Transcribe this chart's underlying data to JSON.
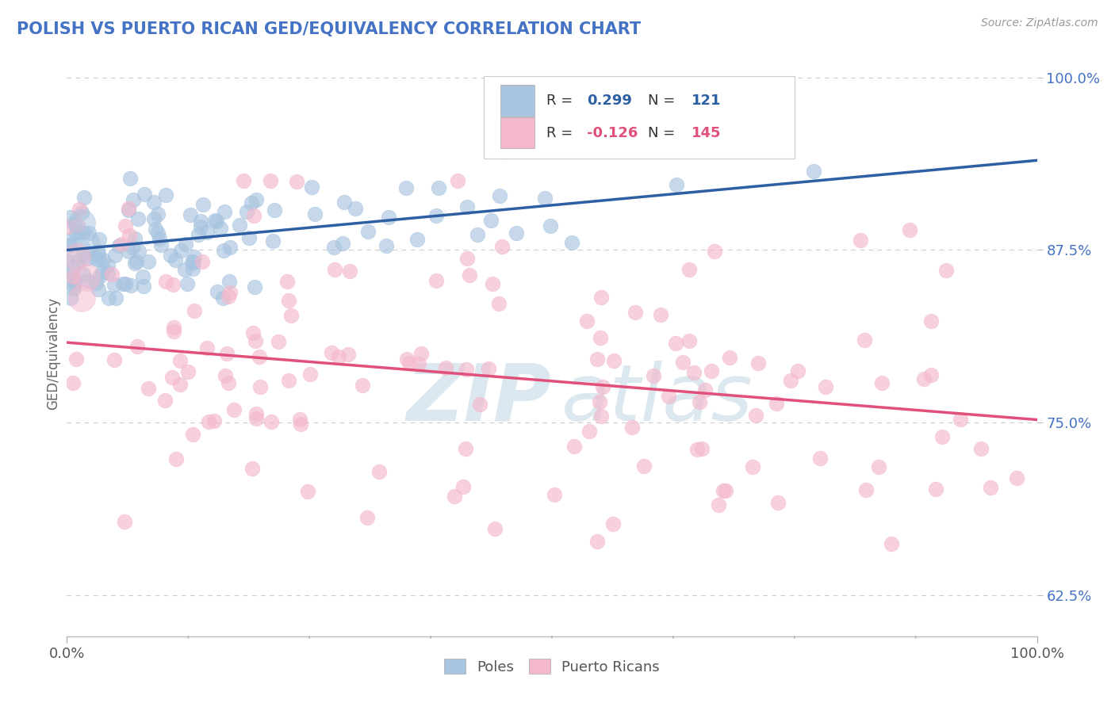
{
  "title": "POLISH VS PUERTO RICAN GED/EQUIVALENCY CORRELATION CHART",
  "source": "Source: ZipAtlas.com",
  "ylabel": "GED/Equivalency",
  "poles_color": "#a8c4e0",
  "poles_edge_color": "#a8c4e0",
  "poles_line_color": "#2e5fa3",
  "puerto_ricans_color": "#f4b8cc",
  "puerto_ricans_edge_color": "#f4b8cc",
  "puerto_ricans_line_color": "#e0507a",
  "background_color": "#ffffff",
  "grid_color": "#cccccc",
  "title_color": "#4472c4",
  "right_tick_color": "#4472c4",
  "watermark_color": "#dce8f0",
  "poles_trend_y0": 0.875,
  "poles_trend_y1": 0.94,
  "pr_trend_y0": 0.808,
  "pr_trend_y1": 0.752,
  "ylim_min": 0.595,
  "ylim_max": 1.005,
  "xlim_min": 0.0,
  "xlim_max": 1.0,
  "right_yticks": [
    0.625,
    0.75,
    0.875,
    1.0
  ],
  "right_yticklabels": [
    "62.5%",
    "75.0%",
    "87.5%",
    "100.0%"
  ],
  "xtick_labels": [
    "0.0%",
    "100.0%"
  ],
  "n_poles": 121,
  "n_pr": 145,
  "r_poles": "0.299",
  "r_pr": "-0.126"
}
